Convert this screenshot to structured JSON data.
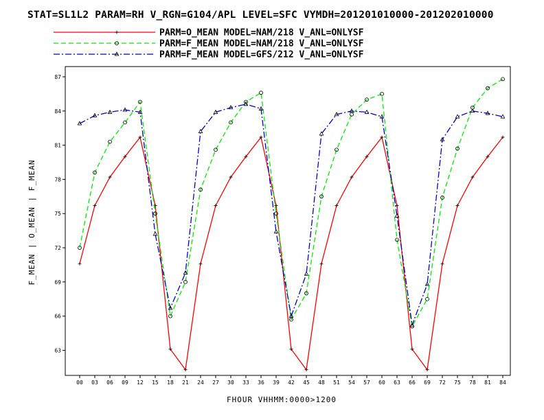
{
  "chart_data": {
    "type": "line",
    "title": "STAT=SL1L2 PARAM=RH V_RGN=G104/APL LEVEL=SFC VYMDH=201201010000-201202010000",
    "xlabel": "FHOUR VHHMM:0000>1200",
    "ylabel": "F_MEAN | O_MEAN | F_MEAN",
    "x": [
      "00",
      "03",
      "06",
      "09",
      "12",
      "15",
      "18",
      "21",
      "24",
      "27",
      "30",
      "33",
      "36",
      "39",
      "42",
      "45",
      "48",
      "51",
      "54",
      "57",
      "60",
      "63",
      "66",
      "69",
      "72",
      "75",
      "78",
      "81",
      "84"
    ],
    "yticks": [
      63,
      66,
      69,
      72,
      75,
      78,
      81,
      84,
      87
    ],
    "ylim": [
      60.8,
      87.9
    ],
    "grid": false,
    "legend_position": "top",
    "series": [
      {
        "name": "PARM=O_MEAN MODEL=NAM/218 V_ANL=ONLYSF",
        "color": "#ff0000",
        "dash": "solid",
        "marker": "plus",
        "values": [
          70.6,
          75.7,
          78.2,
          80.0,
          81.7,
          75.7,
          63.1,
          61.3,
          70.6,
          75.7,
          78.2,
          80.0,
          81.7,
          75.7,
          63.1,
          61.3,
          70.6,
          75.7,
          78.2,
          80.0,
          81.7,
          75.7,
          63.1,
          61.3,
          70.6,
          75.7,
          78.2,
          80.0,
          81.7
        ]
      },
      {
        "name": "PARM=F_MEAN MODEL=NAM/218 V_ANL=ONLYSF",
        "color": "#00ee00",
        "dash": "dashed",
        "marker": "circle",
        "values": [
          72.0,
          78.6,
          81.3,
          83.0,
          84.8,
          75.0,
          66.0,
          69.0,
          77.1,
          80.6,
          83.0,
          84.8,
          85.6,
          75.0,
          65.7,
          68.0,
          76.5,
          80.6,
          83.7,
          85.0,
          85.5,
          72.7,
          65.1,
          67.5,
          76.4,
          80.7,
          84.3,
          86.0,
          86.8
        ]
      },
      {
        "name": "PARM=F_MEAN MODEL=GFS/212 V_ANL=ONLYSF",
        "color": "#0000cc",
        "dash": "dashdot",
        "marker": "triangle",
        "values": [
          82.9,
          83.6,
          83.9,
          84.1,
          83.9,
          73.2,
          66.7,
          69.8,
          82.2,
          83.9,
          84.3,
          84.6,
          84.2,
          73.4,
          66.0,
          69.7,
          82.0,
          83.7,
          84.0,
          83.9,
          83.5,
          74.8,
          65.2,
          68.8,
          81.5,
          83.5,
          84.0,
          83.8,
          83.5
        ]
      }
    ]
  }
}
